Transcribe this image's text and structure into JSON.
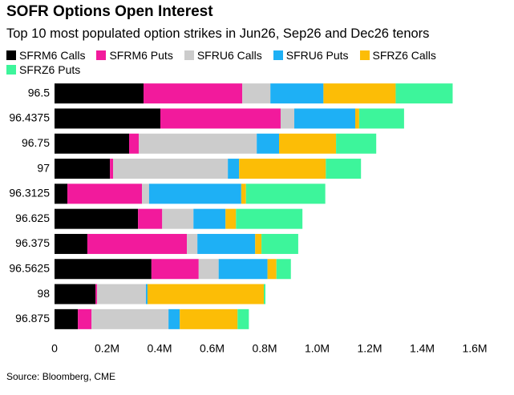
{
  "chart_data": {
    "type": "stacked-barh",
    "title": "SOFR Options Open Interest",
    "subtitle": "Top 10 most populated option strikes in Jun26, Sep26 and Dec26 tenors",
    "source": "Source: Bloomberg, CME",
    "categories": [
      "96.5",
      "96.4375",
      "96.75",
      "97",
      "96.3125",
      "96.625",
      "96.375",
      "96.5625",
      "98",
      "96.875"
    ],
    "series": [
      {
        "name": "SFRM6 Calls",
        "color": "#000000",
        "values": [
          339000,
          403000,
          284000,
          211000,
          49000,
          318000,
          125000,
          369000,
          156000,
          89000
        ]
      },
      {
        "name": "SFRM6 Puts",
        "color": "#f21a9c",
        "values": [
          376000,
          458000,
          37000,
          12000,
          284000,
          92000,
          379000,
          180000,
          6000,
          52000
        ]
      },
      {
        "name": "SFRU6 Calls",
        "color": "#cccccc",
        "values": [
          107000,
          52000,
          449000,
          437000,
          27000,
          119000,
          40000,
          76000,
          186000,
          293000
        ]
      },
      {
        "name": "SFRU6 Puts",
        "color": "#1eb0f5",
        "values": [
          202000,
          232000,
          85000,
          43000,
          351000,
          122000,
          220000,
          186000,
          6000,
          43000
        ]
      },
      {
        "name": "SFRZ6 Calls",
        "color": "#fcbd06",
        "values": [
          275000,
          15000,
          217000,
          330000,
          18000,
          40000,
          24000,
          34000,
          443000,
          220000
        ]
      },
      {
        "name": "SFRZ6 Puts",
        "color": "#3df59b",
        "values": [
          217000,
          171000,
          153000,
          134000,
          302000,
          253000,
          140000,
          55000,
          6000,
          43000
        ]
      }
    ],
    "xlim": [
      0,
      1600000
    ],
    "xticks": [
      0,
      {
        "value": 200000,
        "label": "0.2M"
      },
      {
        "value": 400000,
        "label": "0.4M"
      },
      {
        "value": 600000,
        "label": "0.6M"
      },
      {
        "value": 800000,
        "label": "0.8M"
      },
      {
        "value": 1000000,
        "label": "1.0M"
      },
      {
        "value": 1200000,
        "label": "1.2M"
      },
      {
        "value": 1400000,
        "label": "1.4M"
      },
      {
        "value": 1600000,
        "label": "1.6M"
      }
    ]
  }
}
